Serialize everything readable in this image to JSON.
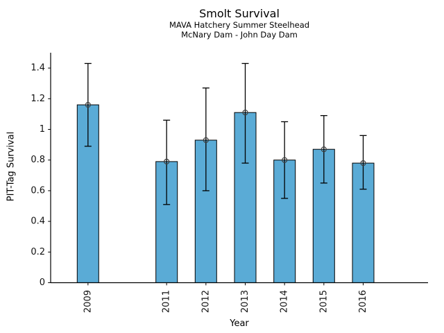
{
  "figure": {
    "background": "#ffffff"
  },
  "chart_data": {
    "type": "bar",
    "title": "Smolt Survival",
    "subtitle_lines": [
      "MAVA Hatchery Summer Steelhead",
      "McNary Dam - John Day Dam"
    ],
    "xlabel": "Year",
    "ylabel": "PIT-Tag Survival",
    "categories": [
      "2009",
      "2011",
      "2012",
      "2013",
      "2014",
      "2015",
      "2016"
    ],
    "x_values": [
      2009,
      2011,
      2012,
      2013,
      2014,
      2015,
      2016
    ],
    "series": [
      {
        "name": "PIT-Tag Survival",
        "values": [
          1.16,
          0.79,
          0.93,
          1.11,
          0.8,
          0.87,
          0.78
        ],
        "error_low": [
          0.89,
          0.51,
          0.6,
          0.78,
          0.55,
          0.65,
          0.61
        ],
        "error_high": [
          1.43,
          1.06,
          1.27,
          1.43,
          1.05,
          1.09,
          0.96
        ]
      }
    ],
    "ytick_labels": [
      "0",
      "0.2",
      "0.4",
      "0.6",
      "0.8",
      "1",
      "1.2",
      "1.4"
    ],
    "ytick_values": [
      0,
      0.2,
      0.4,
      0.6,
      0.8,
      1.0,
      1.2,
      1.4
    ],
    "ylim": [
      0,
      1.5
    ],
    "xlim": [
      2008.05,
      2017.65
    ],
    "grid": false,
    "legend": null,
    "bar_color": "#5aabd6",
    "bar_edge_color": "#000000",
    "error_color": "#000000",
    "marker": "open-circle",
    "marker_color": "#3d3d3d",
    "axis_color": "#000000",
    "text_color": "#111111"
  }
}
